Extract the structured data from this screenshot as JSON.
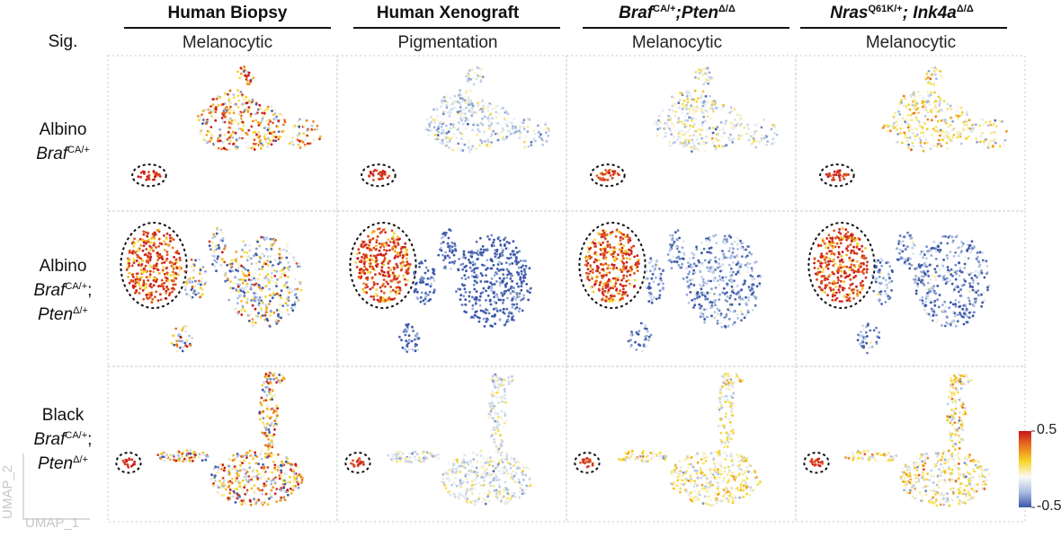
{
  "row_header": "Sig.",
  "columns": [
    {
      "title": [
        "Human Biopsy"
      ],
      "signature": "Melanocytic"
    },
    {
      "title": [
        "Human Xenograft"
      ],
      "signature": "Pigmentation"
    },
    {
      "title": [
        "Braf",
        "CA/+",
        ";Pten",
        "Δ/Δ"
      ],
      "signature": "Melanocytic"
    },
    {
      "title": [
        "Nras",
        "Q61K/+",
        "; Ink4a",
        "Δ/Δ"
      ],
      "signature": "Melanocytic"
    }
  ],
  "rows": [
    {
      "label": "Albino",
      "gene1": "Braf",
      "gene1_sup": "CA/+"
    },
    {
      "label": "Albino",
      "gene1": "Braf",
      "gene1_sup": "CA/+",
      "gene1_tail": ";",
      "gene2": "Pten",
      "gene2_sup": "Δ/+"
    },
    {
      "label": "Black",
      "gene1": "Braf",
      "gene1_sup": "CA/+",
      "gene1_tail": ";",
      "gene2": "Pten",
      "gene2_sup": "Δ/+"
    }
  ],
  "axes": {
    "x": "UMAP_1",
    "y": "UMAP_2"
  },
  "colorbar": {
    "ticks": [
      0.5,
      -0.5
    ]
  }
}
